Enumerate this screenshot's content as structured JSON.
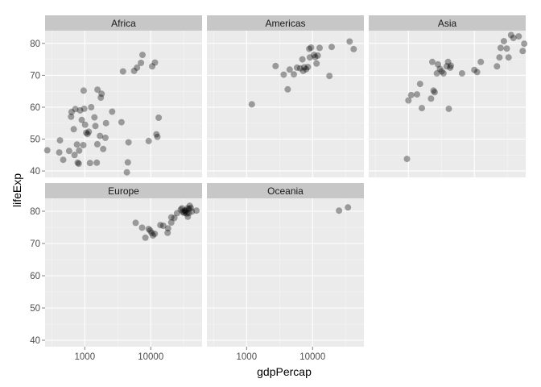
{
  "chart_data": {
    "type": "scatter",
    "facet_layout": "3 columns, 2 rows",
    "xlabel": "gdpPercap",
    "ylabel": "lifeExp",
    "x_scale": "log10",
    "x_ticks": [
      1000,
      10000
    ],
    "x_tick_labels": [
      "1000",
      "10000"
    ],
    "xlim": [
      250,
      60000
    ],
    "y_ticks": [
      40,
      50,
      60,
      70,
      80
    ],
    "y_tick_labels": [
      "40",
      "50",
      "60",
      "70",
      "80"
    ],
    "ylim": [
      38,
      84
    ],
    "grid": true,
    "colors": {
      "panel_bg": "#ebebeb",
      "strip_bg": "#c7c7c7",
      "grid_major": "#ffffff",
      "grid_minor": "#f5f5f5",
      "point": "#000000"
    },
    "point_opacity": 0.35,
    "facets": [
      {
        "name": "Africa",
        "points": [
          [
            270,
            46.5
          ],
          [
            410,
            45.8
          ],
          [
            420,
            49.6
          ],
          [
            470,
            43.5
          ],
          [
            580,
            46.3
          ],
          [
            630,
            58.5
          ],
          [
            620,
            57.0
          ],
          [
            680,
            53.1
          ],
          [
            700,
            45.0
          ],
          [
            720,
            59.4
          ],
          [
            760,
            48.3
          ],
          [
            780,
            42.6
          ],
          [
            810,
            42.3
          ],
          [
            820,
            46.4
          ],
          [
            850,
            59.0
          ],
          [
            900,
            56.0
          ],
          [
            950,
            48.1
          ],
          [
            960,
            65.2
          ],
          [
            980,
            59.5
          ],
          [
            1010,
            54.5
          ],
          [
            1050,
            52.0
          ],
          [
            1100,
            51.6
          ],
          [
            1150,
            52.3
          ],
          [
            1200,
            42.5
          ],
          [
            1250,
            60.0
          ],
          [
            1400,
            56.8
          ],
          [
            1450,
            54.1
          ],
          [
            1520,
            42.6
          ],
          [
            1550,
            48.4
          ],
          [
            1560,
            65.5
          ],
          [
            1700,
            51.0
          ],
          [
            1750,
            63.0
          ],
          [
            1800,
            64.2
          ],
          [
            1900,
            46.9
          ],
          [
            2050,
            50.4
          ],
          [
            2100,
            55.0
          ],
          [
            2600,
            58.6
          ],
          [
            3600,
            55.3
          ],
          [
            3800,
            71.2
          ],
          [
            4350,
            39.6
          ],
          [
            4500,
            42.7
          ],
          [
            4600,
            49.0
          ],
          [
            5600,
            71.4
          ],
          [
            6200,
            72.4
          ],
          [
            7100,
            73.9
          ],
          [
            7500,
            76.4
          ],
          [
            9300,
            49.4
          ],
          [
            10500,
            72.8
          ],
          [
            11600,
            74.0
          ],
          [
            12200,
            51.5
          ],
          [
            12600,
            50.7
          ],
          [
            13200,
            56.7
          ]
        ]
      },
      {
        "name": "Americas",
        "points": [
          [
            1200,
            60.9
          ],
          [
            2750,
            72.9
          ],
          [
            3650,
            70.2
          ],
          [
            4200,
            65.6
          ],
          [
            4500,
            71.8
          ],
          [
            5200,
            70.3
          ],
          [
            5800,
            72.4
          ],
          [
            6500,
            72.2
          ],
          [
            7000,
            75.0
          ],
          [
            7200,
            71.4
          ],
          [
            7500,
            72.5
          ],
          [
            8000,
            71.9
          ],
          [
            8500,
            72.6
          ],
          [
            8900,
            78.3
          ],
          [
            9100,
            75.6
          ],
          [
            9500,
            78.7
          ],
          [
            10500,
            76.4
          ],
          [
            11000,
            75.7
          ],
          [
            11500,
            73.7
          ],
          [
            12000,
            76.2
          ],
          [
            12800,
            78.6
          ],
          [
            18000,
            69.8
          ],
          [
            19500,
            78.9
          ],
          [
            36500,
            80.6
          ],
          [
            42000,
            78.2
          ]
        ]
      },
      {
        "name": "Asia",
        "points": [
          [
            950,
            43.8
          ],
          [
            1000,
            62.1
          ],
          [
            1100,
            63.8
          ],
          [
            1350,
            64.0
          ],
          [
            1500,
            67.3
          ],
          [
            1600,
            59.7
          ],
          [
            2200,
            62.7
          ],
          [
            2300,
            74.2
          ],
          [
            2400,
            65.2
          ],
          [
            2500,
            64.7
          ],
          [
            2700,
            70.6
          ],
          [
            2800,
            73.4
          ],
          [
            3000,
            72.0
          ],
          [
            3200,
            71.2
          ],
          [
            3400,
            70.6
          ],
          [
            3800,
            72.8
          ],
          [
            4000,
            74.2
          ],
          [
            4100,
            59.5
          ],
          [
            4300,
            72.4
          ],
          [
            4400,
            73.0
          ],
          [
            6500,
            70.6
          ],
          [
            10000,
            71.7
          ],
          [
            11000,
            71.0
          ],
          [
            12500,
            74.2
          ],
          [
            22000,
            72.8
          ],
          [
            24000,
            75.6
          ],
          [
            25000,
            78.6
          ],
          [
            28000,
            80.7
          ],
          [
            31000,
            78.4
          ],
          [
            33000,
            75.6
          ],
          [
            36000,
            82.6
          ],
          [
            39000,
            81.7
          ],
          [
            47000,
            82.2
          ],
          [
            54000,
            77.6
          ],
          [
            57000,
            79.9
          ]
        ]
      },
      {
        "name": "Europe",
        "points": [
          [
            5900,
            76.4
          ],
          [
            7400,
            74.9
          ],
          [
            8300,
            71.8
          ],
          [
            9300,
            74.5
          ],
          [
            9800,
            74.0
          ],
          [
            10300,
            73.3
          ],
          [
            10800,
            72.5
          ],
          [
            11500,
            73.0
          ],
          [
            14000,
            75.7
          ],
          [
            15500,
            75.5
          ],
          [
            18000,
            73.3
          ],
          [
            18300,
            74.7
          ],
          [
            20500,
            76.5
          ],
          [
            20500,
            78.1
          ],
          [
            22800,
            77.9
          ],
          [
            25000,
            79.4
          ],
          [
            28600,
            80.5
          ],
          [
            29800,
            80.9
          ],
          [
            30500,
            79.8
          ],
          [
            32000,
            79.5
          ],
          [
            33000,
            80.2
          ],
          [
            33500,
            79.8
          ],
          [
            34000,
            80.2
          ],
          [
            35000,
            79.3
          ],
          [
            36000,
            80.9
          ],
          [
            36500,
            78.3
          ],
          [
            37500,
            79.4
          ],
          [
            38000,
            80.7
          ],
          [
            39000,
            81.7
          ],
          [
            40500,
            81.0
          ],
          [
            42000,
            79.9
          ],
          [
            49300,
            80.2
          ]
        ]
      },
      {
        "name": "Oceania",
        "points": [
          [
            25200,
            80.2
          ],
          [
            34400,
            81.2
          ]
        ]
      }
    ]
  }
}
